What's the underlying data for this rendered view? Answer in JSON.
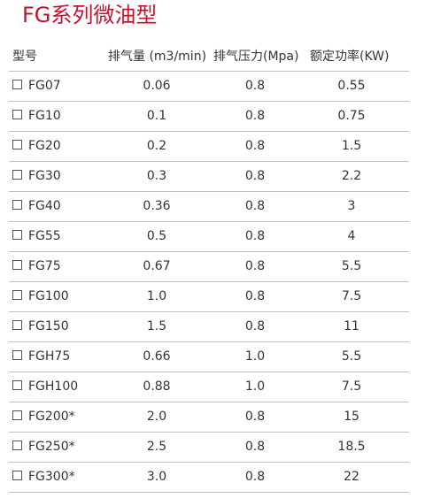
{
  "title": "FG系列微油型",
  "headers": {
    "model": "型号",
    "displacement": "排气量 (m3/min)",
    "pressure": "排气压力(Mpa)",
    "power": "额定功率(KW)"
  },
  "rows": [
    {
      "model": "FG07",
      "displacement": "0.06",
      "pressure": "0.8",
      "power": "0.55"
    },
    {
      "model": "FG10",
      "displacement": "0.1",
      "pressure": "0.8",
      "power": "0.75"
    },
    {
      "model": "FG20",
      "displacement": "0.2",
      "pressure": "0.8",
      "power": "1.5"
    },
    {
      "model": "FG30",
      "displacement": "0.3",
      "pressure": "0.8",
      "power": "2.2"
    },
    {
      "model": "FG40",
      "displacement": "0.36",
      "pressure": "0.8",
      "power": "3"
    },
    {
      "model": "FG55",
      "displacement": "0.5",
      "pressure": "0.8",
      "power": "4"
    },
    {
      "model": "FG75",
      "displacement": "0.67",
      "pressure": "0.8",
      "power": "5.5"
    },
    {
      "model": "FG100",
      "displacement": "1.0",
      "pressure": "0.8",
      "power": "7.5"
    },
    {
      "model": "FG150",
      "displacement": "1.5",
      "pressure": "0.8",
      "power": "11"
    },
    {
      "model": "FGH75",
      "displacement": "0.66",
      "pressure": "1.0",
      "power": "5.5"
    },
    {
      "model": "FGH100",
      "displacement": "0.88",
      "pressure": "1.0",
      "power": "7.5"
    },
    {
      "model": "FG200*",
      "displacement": "2.0",
      "pressure": "0.8",
      "power": "15"
    },
    {
      "model": "FG250*",
      "displacement": "2.5",
      "pressure": "0.8",
      "power": "18.5"
    },
    {
      "model": "FG300*",
      "displacement": "3.0",
      "pressure": "0.8",
      "power": "22"
    }
  ],
  "colors": {
    "title": "#c8102e",
    "text": "#333333",
    "rule": "#bfbfbf"
  }
}
